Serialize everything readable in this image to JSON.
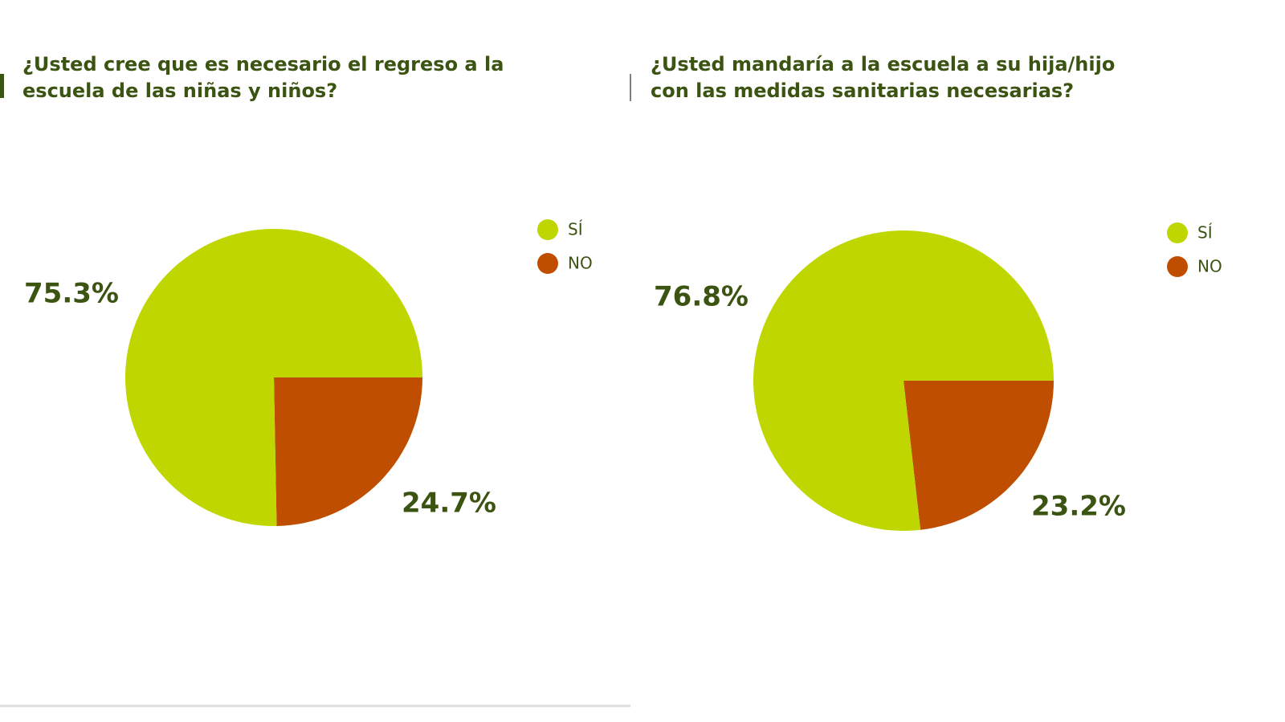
{
  "chart_data": [
    {
      "type": "pie",
      "title": "¿Usted cree que es necesario el regreso a la escuela de las niñas y niños?",
      "categories": [
        "SÍ",
        "NO"
      ],
      "values": [
        75.3,
        24.7
      ],
      "value_labels": [
        "75.3%",
        "24.7%"
      ],
      "colors": [
        "#bfd600",
        "#bf4e00"
      ]
    },
    {
      "type": "pie",
      "title": "¿Usted mandaría a la escuela a su hija/hijo con las medidas sanitarias necesarias?",
      "categories": [
        "SÍ",
        "NO"
      ],
      "values": [
        76.8,
        23.2
      ],
      "value_labels": [
        "76.8%",
        "23.2%"
      ],
      "colors": [
        "#bfd600",
        "#bf4e00"
      ]
    }
  ]
}
